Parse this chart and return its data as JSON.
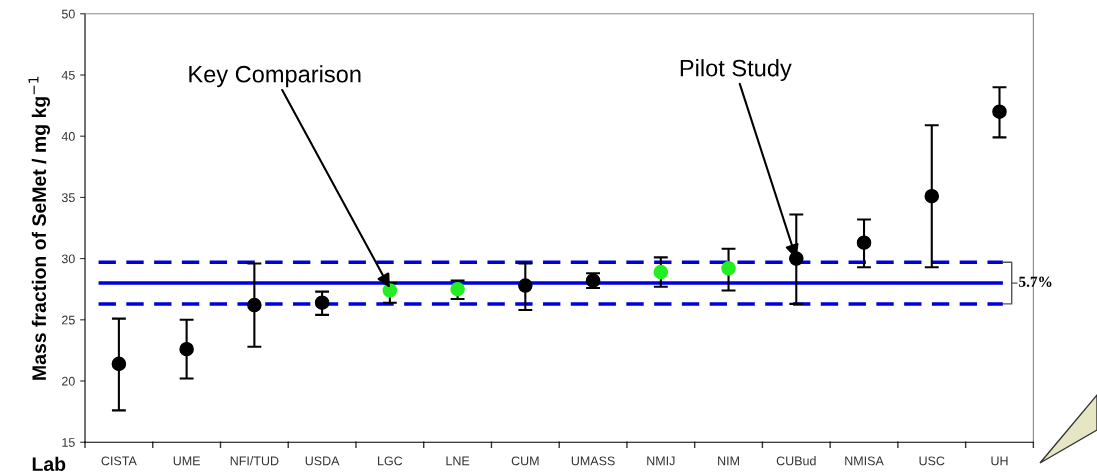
{
  "chart_data": {
    "type": "scatter",
    "categories": [
      "CISTA",
      "UME",
      "NFI/TUD",
      "USDA",
      "LGC",
      "LNE",
      "CUM",
      "UMASS",
      "NMIJ",
      "NIM",
      "CUBud",
      "NMISA",
      "USC",
      "UH"
    ],
    "series": [
      {
        "color": "#000000",
        "values": [
          21.4,
          22.6,
          26.2,
          26.4,
          null,
          null,
          27.8,
          28.2,
          null,
          null,
          30.0,
          31.3,
          35.1,
          42.0
        ],
        "errors": [
          [
            17.6,
            25.1
          ],
          [
            20.2,
            25.0
          ],
          [
            22.8,
            29.6
          ],
          [
            25.4,
            27.3
          ],
          null,
          null,
          [
            25.8,
            29.6
          ],
          [
            27.6,
            28.8
          ],
          null,
          null,
          [
            26.3,
            33.6
          ],
          [
            29.3,
            33.2
          ],
          [
            29.3,
            40.9
          ],
          [
            39.9,
            44.0
          ]
        ]
      },
      {
        "color": "#22ee22",
        "values": [
          null,
          null,
          null,
          null,
          27.4,
          27.5,
          null,
          null,
          28.9,
          29.2,
          null,
          null,
          null,
          null
        ],
        "errors": [
          null,
          null,
          null,
          null,
          [
            26.4,
            28.0
          ],
          [
            26.7,
            28.2
          ],
          null,
          null,
          [
            27.7,
            30.1
          ],
          [
            27.4,
            30.8
          ],
          null,
          null,
          null,
          null
        ]
      }
    ],
    "xlabel": "Lab",
    "ylabel": "Mass fraction of SeMet / mg kg$^{−1}$",
    "ylim": [
      15,
      50
    ],
    "yticks": [
      15,
      20,
      25,
      30,
      35,
      40,
      45,
      50
    ],
    "marker": "circle",
    "grid": false,
    "ref_lines": [
      {
        "axis": "y",
        "value": 28.0,
        "color": "#0000dd",
        "line_style": "solid"
      },
      {
        "axis": "y",
        "value": 29.7,
        "color": "#0000dd",
        "line_style": "dashed"
      },
      {
        "axis": "y",
        "value": 26.3,
        "color": "#0000dd",
        "line_style": "dashed"
      }
    ],
    "annotations": [
      {
        "text": "Key Comparison",
        "x": "LGC",
        "y": 27.6
      },
      {
        "text": "Pilot Study",
        "x": "CUBud",
        "y": 30.0
      },
      "5.7%"
    ]
  }
}
